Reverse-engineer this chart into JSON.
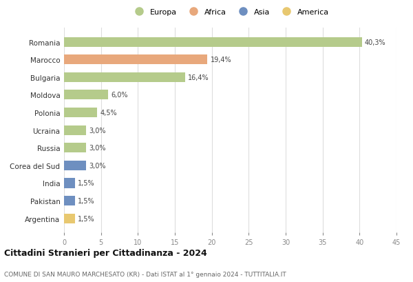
{
  "countries": [
    "Romania",
    "Marocco",
    "Bulgaria",
    "Moldova",
    "Polonia",
    "Ucraina",
    "Russia",
    "Corea del Sud",
    "India",
    "Pakistan",
    "Argentina"
  ],
  "values": [
    40.3,
    19.4,
    16.4,
    6.0,
    4.5,
    3.0,
    3.0,
    3.0,
    1.5,
    1.5,
    1.5
  ],
  "labels": [
    "40,3%",
    "19,4%",
    "16,4%",
    "6,0%",
    "4,5%",
    "3,0%",
    "3,0%",
    "3,0%",
    "1,5%",
    "1,5%",
    "1,5%"
  ],
  "colors": [
    "#b5cb8b",
    "#e8a87c",
    "#b5cb8b",
    "#b5cb8b",
    "#b5cb8b",
    "#b5cb8b",
    "#b5cb8b",
    "#6e8fc0",
    "#6e8fc0",
    "#6e8fc0",
    "#e8c870"
  ],
  "legend_labels": [
    "Europa",
    "Africa",
    "Asia",
    "America"
  ],
  "legend_colors": [
    "#b5cb8b",
    "#e8a87c",
    "#6e8fc0",
    "#e8c870"
  ],
  "title": "Cittadini Stranieri per Cittadinanza - 2024",
  "subtitle": "COMUNE DI SAN MAURO MARCHESATO (KR) - Dati ISTAT al 1° gennaio 2024 - TUTTITALIA.IT",
  "xlim": [
    0,
    45
  ],
  "xticks": [
    0,
    5,
    10,
    15,
    20,
    25,
    30,
    35,
    40,
    45
  ],
  "bg_color": "#ffffff",
  "grid_color": "#dddddd",
  "bar_height": 0.55
}
